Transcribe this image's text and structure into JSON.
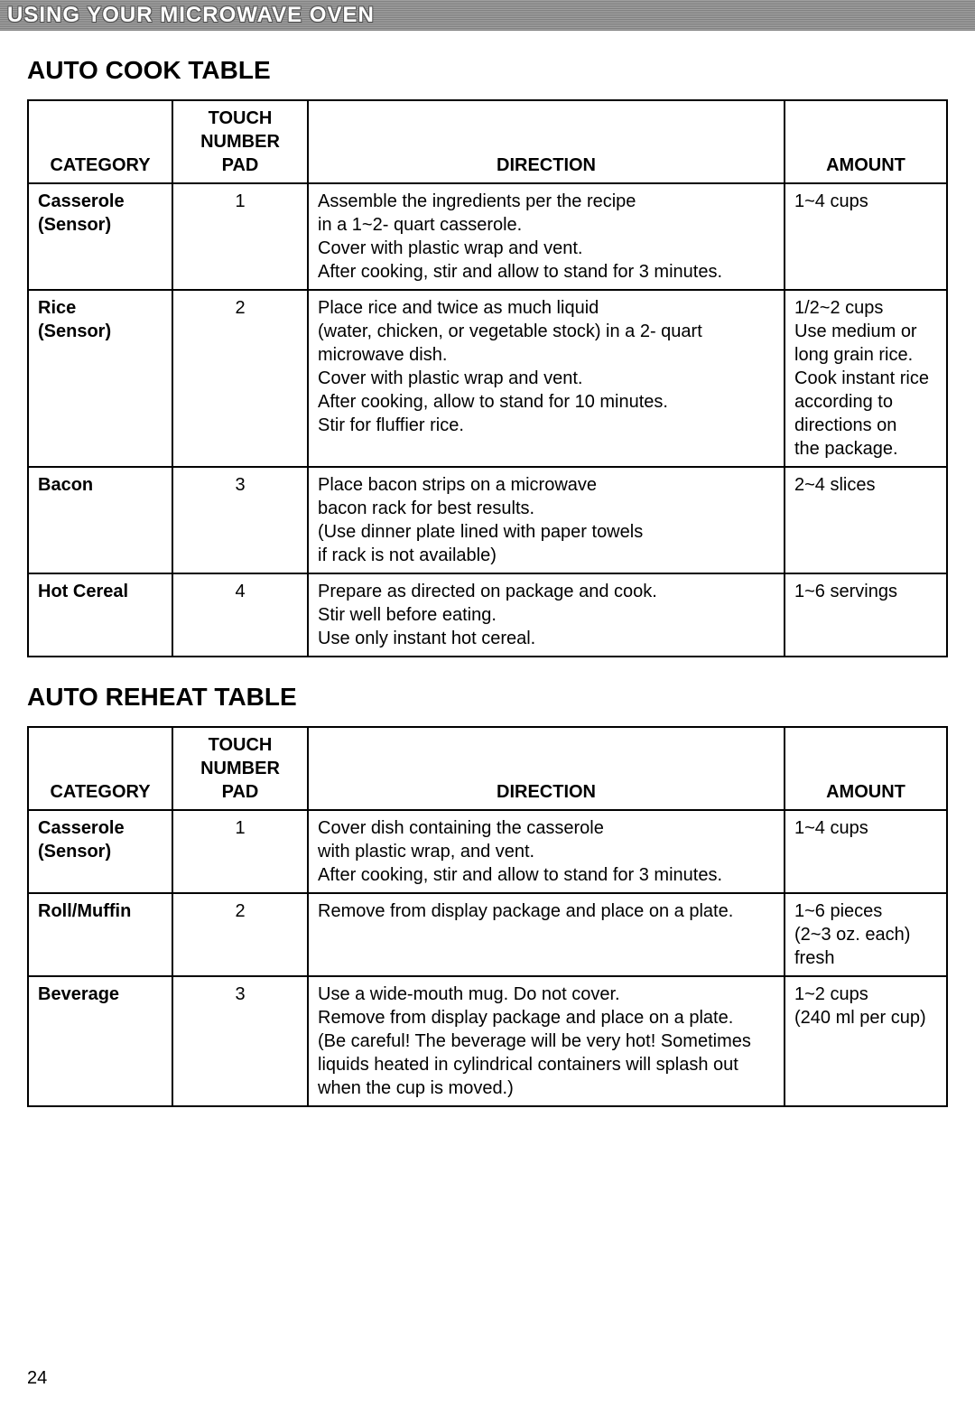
{
  "header": {
    "title": "USING YOUR MICROWAVE OVEN"
  },
  "sections": [
    {
      "title": "AUTO COOK TABLE",
      "columns": [
        "CATEGORY",
        "TOUCH NUMBER PAD",
        "DIRECTION",
        "AMOUNT"
      ],
      "rows": [
        {
          "category": [
            "Casserole",
            "(Sensor)"
          ],
          "touchpad": "1",
          "direction": [
            "Assemble the ingredients per the recipe",
            "in a 1~2- quart casserole.",
            "Cover with plastic wrap and vent.",
            "After cooking, stir and allow to stand for 3 minutes."
          ],
          "amount": [
            "1~4 cups"
          ]
        },
        {
          "category": [
            "Rice",
            "(Sensor)"
          ],
          "touchpad": "2",
          "direction": [
            "Place rice and twice as much liquid",
            "(water, chicken, or vegetable stock) in a 2- quart",
            "microwave dish.",
            "Cover with plastic wrap and vent.",
            "After cooking, allow to stand for 10 minutes.",
            "Stir for fluffier rice."
          ],
          "amount": [
            "1/2~2 cups",
            "Use medium or",
            "long grain rice.",
            "Cook instant rice",
            "according to",
            "directions on",
            "the package."
          ]
        },
        {
          "category": [
            "Bacon"
          ],
          "touchpad": "3",
          "direction": [
            "Place bacon strips on a microwave",
            "bacon rack for best results.",
            "(Use dinner plate lined with paper towels",
            "if rack is not available)"
          ],
          "amount": [
            "2~4 slices"
          ]
        },
        {
          "category": [
            "Hot Cereal"
          ],
          "touchpad": "4",
          "direction": [
            "Prepare as directed on package and cook.",
            "Stir well before eating.",
            "Use only instant hot cereal.",
            " "
          ],
          "amount": [
            "1~6 servings"
          ]
        }
      ]
    },
    {
      "title": "AUTO REHEAT TABLE",
      "columns": [
        "CATEGORY",
        "TOUCH NUMBER PAD",
        "DIRECTION",
        "AMOUNT"
      ],
      "rows": [
        {
          "category": [
            "Casserole",
            "(Sensor)"
          ],
          "touchpad": "1",
          "direction": [
            "Cover dish containing the casserole",
            "with plastic wrap, and vent.",
            "After cooking, stir and allow to stand for 3 minutes."
          ],
          "amount": [
            "1~4 cups"
          ]
        },
        {
          "category": [
            "Roll/Muffin"
          ],
          "touchpad": "2",
          "direction": [
            "Remove from display package and place on a plate.",
            " ",
            " ",
            " "
          ],
          "amount": [
            "1~6 pieces",
            "(2~3 oz. each)",
            "fresh"
          ]
        },
        {
          "category": [
            "Beverage"
          ],
          "touchpad": "3",
          "direction": [
            "Use a wide-mouth mug. Do not cover.",
            "Remove from display package and place on a plate.",
            "(Be careful! The beverage will be very hot! Sometimes",
            "liquids heated in cylindrical containers will splash out",
            "when the cup is moved.)"
          ],
          "amount": [
            "1~2 cups",
            "(240 ml per cup)"
          ]
        }
      ]
    }
  ],
  "pageNumber": "24"
}
